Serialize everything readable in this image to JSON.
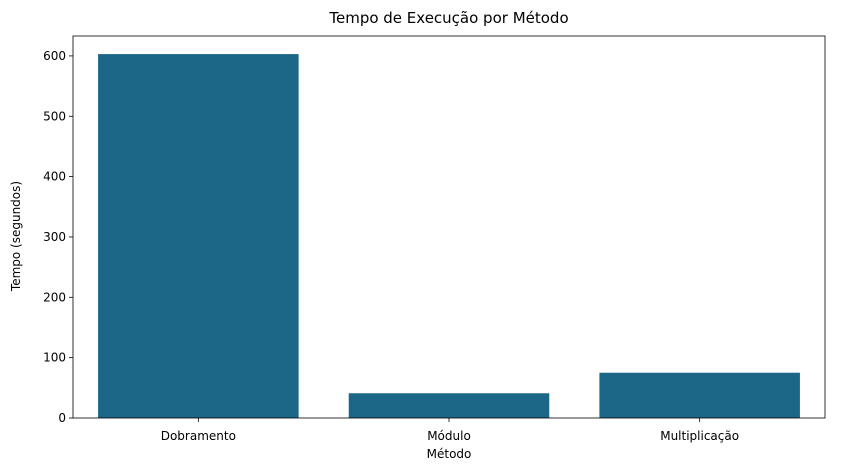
{
  "chart_data": {
    "type": "bar",
    "title": "Tempo de Execução por Método",
    "xlabel": "Método",
    "ylabel": "Tempo (segundos)",
    "categories": [
      "Dobramento",
      "Módulo",
      "Multiplicação"
    ],
    "values": [
      603,
      41,
      75
    ],
    "ylim": [
      0,
      633
    ],
    "yticks": [
      0,
      100,
      200,
      300,
      400,
      500,
      600
    ],
    "grid": false,
    "bar_color": "#1c6688"
  }
}
